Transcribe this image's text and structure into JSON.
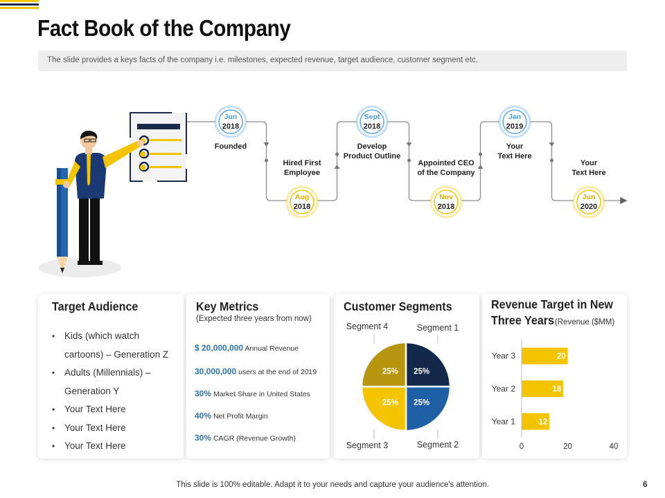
{
  "header": {
    "title": "Fact Book of the Company",
    "subtitle": "The slide provides a keys facts of the company i.e. milestones, expected revenue, target audience, customer segment etc.",
    "accent_colors": [
      "#f5c400",
      "#1b2a4a",
      "#f5c400"
    ]
  },
  "timeline": {
    "milestones": [
      {
        "month": "Jun",
        "year": "2018",
        "line1": "Founded",
        "line2": "",
        "color": "#5aa6e6"
      },
      {
        "month": "Aug",
        "year": "2018",
        "line1": "Hired First",
        "line2": "Employee",
        "color": "#f5c400"
      },
      {
        "month": "Sept",
        "year": "2018",
        "line1": "Develop",
        "line2": "Product Outline",
        "color": "#5aa6e6"
      },
      {
        "month": "Nov",
        "year": "2018",
        "line1": "Appointed CEO",
        "line2": "of the Company",
        "color": "#f5c400"
      },
      {
        "month": "Jan",
        "year": "2019",
        "line1": "Your",
        "line2": "Text Here",
        "color": "#5aa6e6"
      },
      {
        "month": "Jun",
        "year": "2020",
        "line1": "Your",
        "line2": "Text Here",
        "color": "#f5c400"
      }
    ]
  },
  "target_audience": {
    "title": "Target Audience",
    "items": [
      "Kids (which watch cartoons) – Generation Z",
      "Adults (Millennials) – Generation Y",
      "Your Text Here",
      "Your Text Here",
      "Your Text Here"
    ]
  },
  "key_metrics": {
    "title": "Key Metrics",
    "subtitle": "(Expected three years from now)",
    "items": [
      {
        "value": "$ 20,000,000",
        "label": "Annual Revenue"
      },
      {
        "value": "30,000,000",
        "label": "users at the end of 2019"
      },
      {
        "value": "30%",
        "label": "Market Share in United States"
      },
      {
        "value": "40%",
        "label": "Net Profit Margin"
      },
      {
        "value": "30%",
        "label": "CAGR (Revenue Growth)"
      }
    ]
  },
  "customer_segments": {
    "title": "Customer Segments"
  },
  "revenue_target": {
    "title_line1": "Revenue Target in New",
    "title_line2": "Three Years",
    "unit": "(Revenue ($MM)"
  },
  "chart_data": [
    {
      "type": "pie",
      "title": "Customer Segments",
      "categories": [
        "Segment 1",
        "Segment 2",
        "Segment 3",
        "Segment 4"
      ],
      "values": [
        25,
        25,
        25,
        25
      ],
      "labels": [
        "25%",
        "25%",
        "25%",
        "25%"
      ],
      "colors": [
        "#13294b",
        "#1f5fa5",
        "#f5c400",
        "#b8950f"
      ]
    },
    {
      "type": "bar",
      "orientation": "horizontal",
      "title": "Revenue Target in New Three Years",
      "ylabel": "(Revenue ($MM)",
      "categories": [
        "Year 3",
        "Year 2",
        "Year 1"
      ],
      "values": [
        20,
        18,
        12
      ],
      "xlim": [
        0,
        40
      ],
      "xticks": [
        "0",
        "20",
        "40"
      ],
      "color": "#f5c400",
      "grid": false
    }
  ],
  "footer": {
    "note": "This slide is 100% editable. Adapt it to your needs and capture your audience's attention.",
    "page": "6"
  }
}
